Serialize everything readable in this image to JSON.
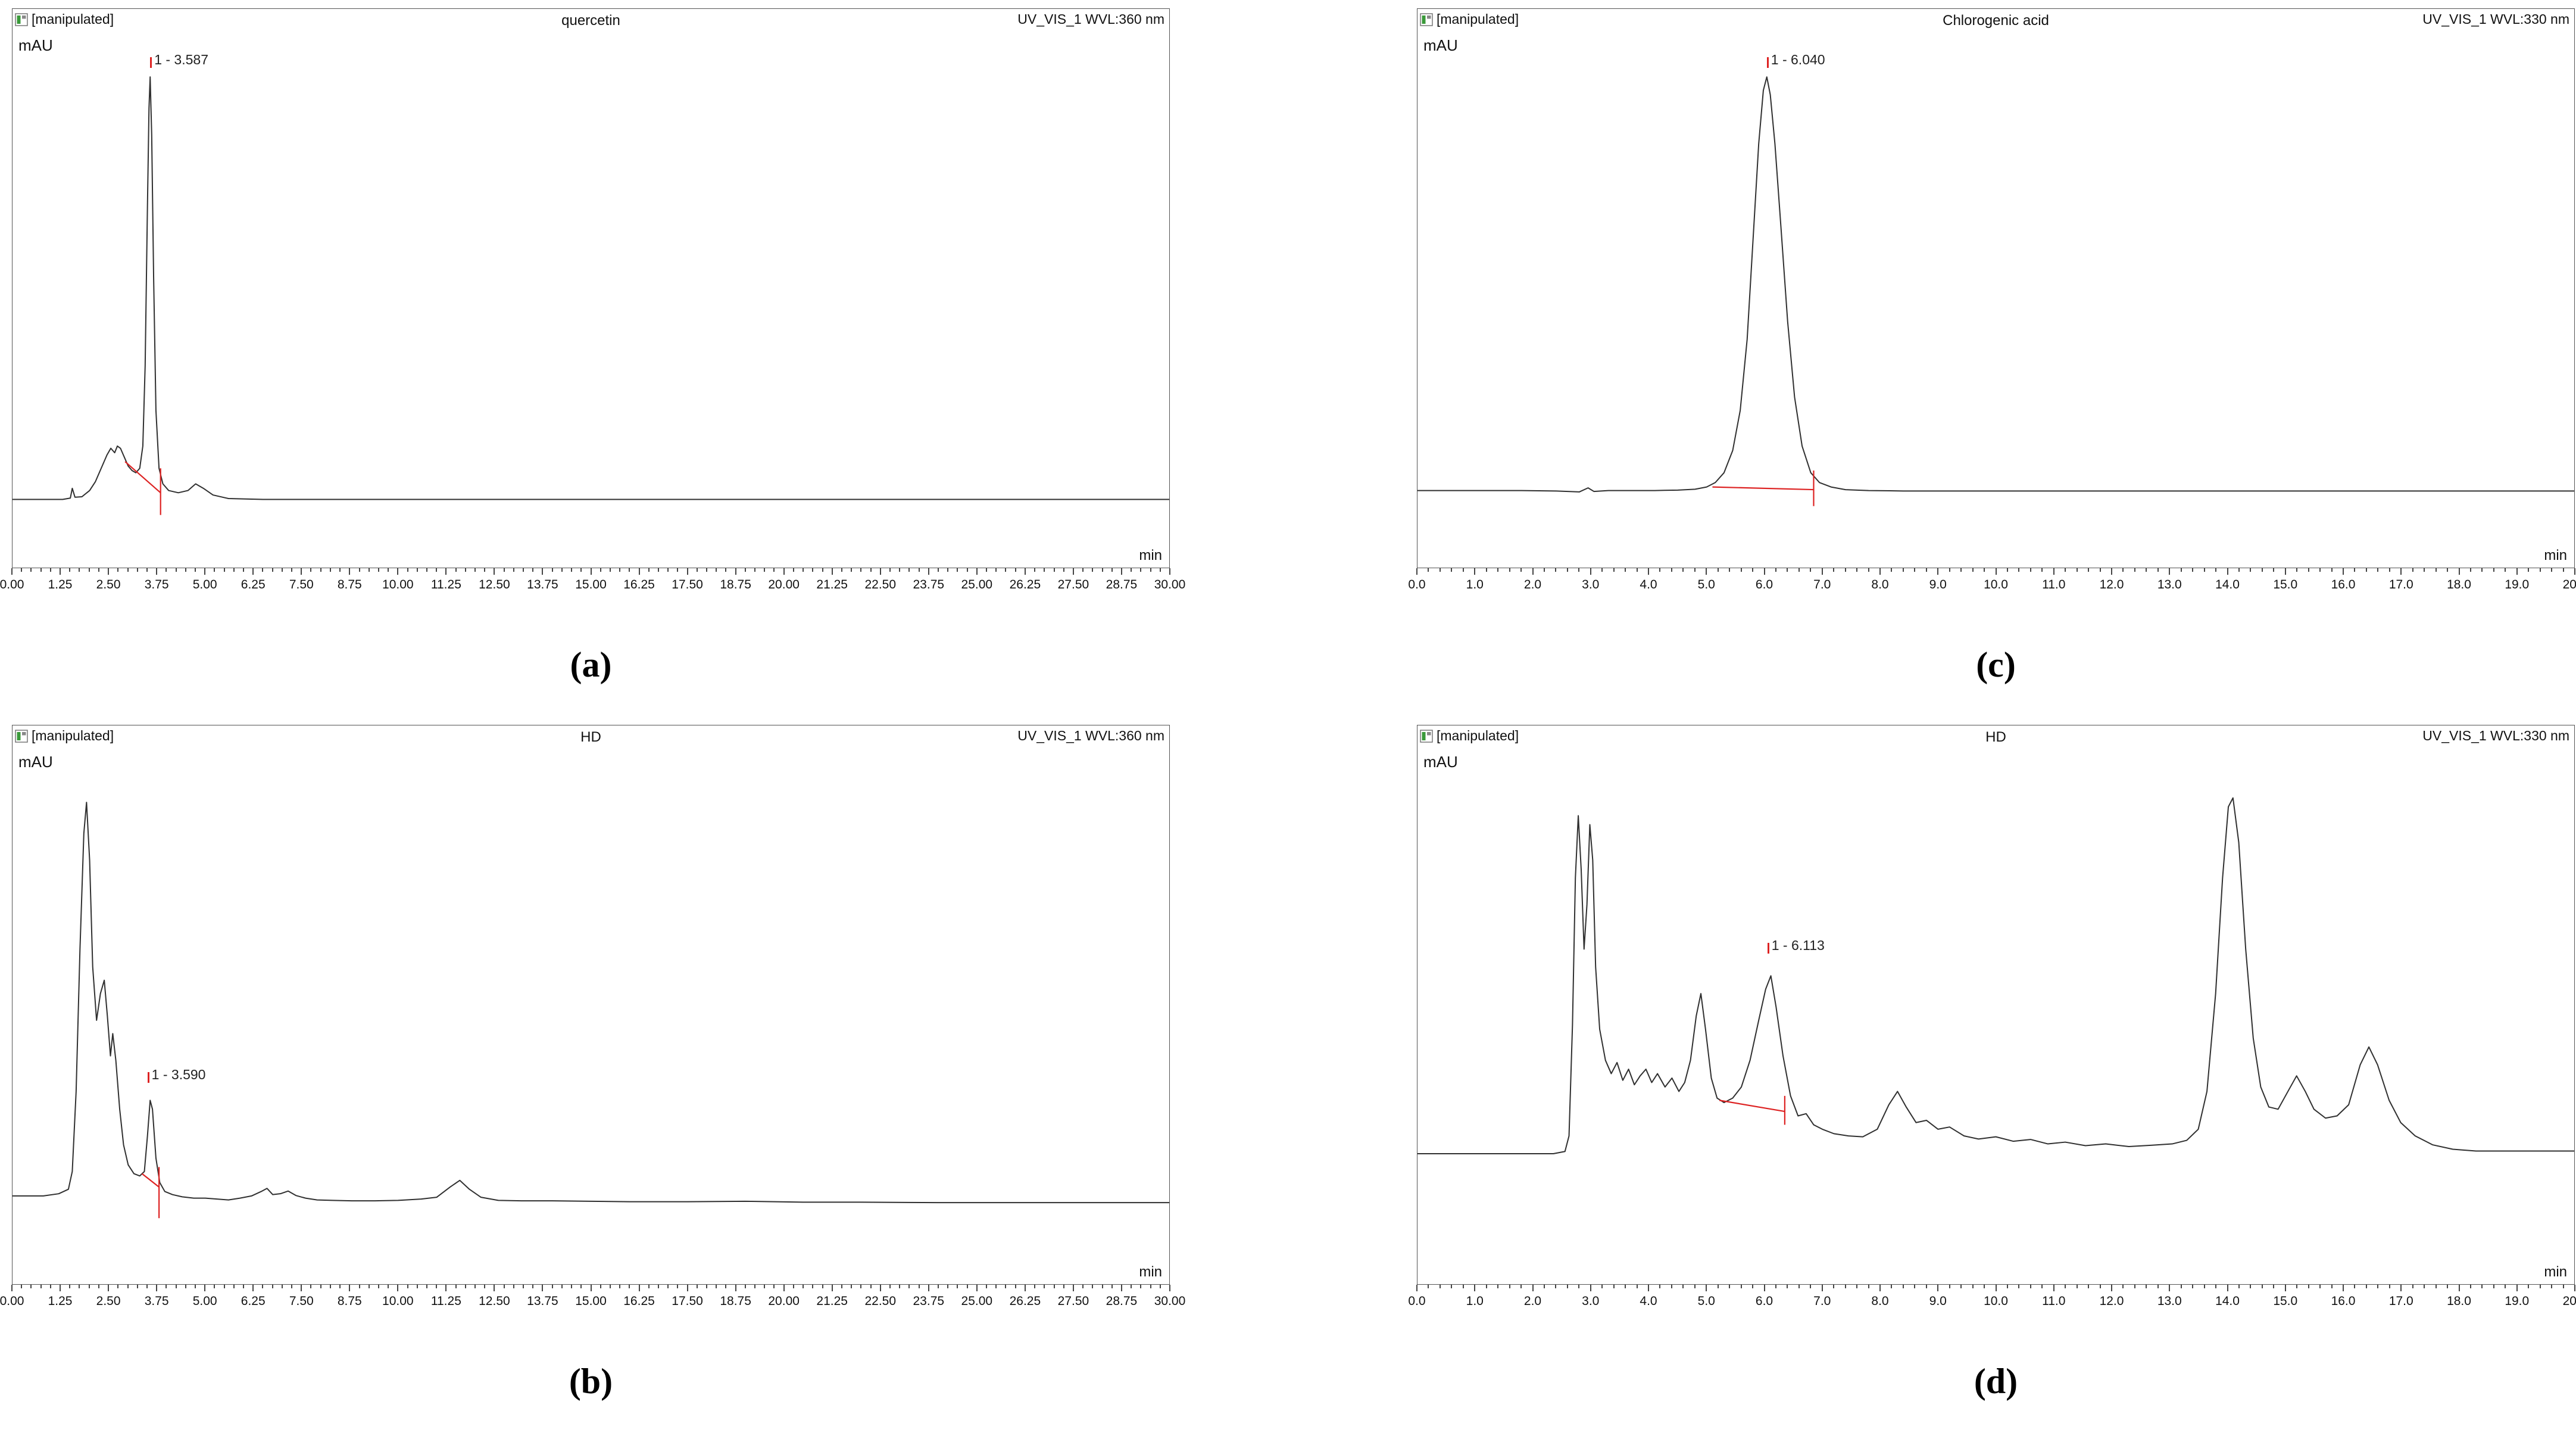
{
  "page": {
    "background": "#ffffff"
  },
  "colors": {
    "trace": "#303030",
    "marker": "#dd2222",
    "chip_green": "#3a9a3a"
  },
  "chart_data": [
    {
      "id": "a",
      "type": "line",
      "title": "quercetin",
      "source_label": "[manipulated]",
      "detector_label": "UV_VIS_1 WVL:360 nm",
      "ylabel": "mAU",
      "xlabel": "min",
      "caption": "(a)",
      "xlim": [
        0,
        30
      ],
      "x_tick_step": 1.25,
      "x_tick_decimals": 2,
      "x_minor_per_major": 4,
      "grid": false,
      "peaks": [
        {
          "label": "1 - 3.587",
          "x": 3.57,
          "y": 99,
          "retention_min": 3.587
        }
      ],
      "baseline_markers": [
        [
          [
            2.92,
            10.5
          ],
          [
            3.84,
            3.5
          ]
        ],
        [
          [
            3.84,
            9
          ],
          [
            3.84,
            -1.5
          ]
        ]
      ],
      "trace": [
        [
          0,
          2
        ],
        [
          0.8,
          2
        ],
        [
          1.3,
          2
        ],
        [
          1.5,
          2.3
        ],
        [
          1.55,
          4.5
        ],
        [
          1.62,
          2.5
        ],
        [
          1.8,
          2.6
        ],
        [
          2.0,
          4
        ],
        [
          2.15,
          6
        ],
        [
          2.3,
          9
        ],
        [
          2.45,
          12
        ],
        [
          2.55,
          13.5
        ],
        [
          2.65,
          12.5
        ],
        [
          2.72,
          14
        ],
        [
          2.8,
          13.5
        ],
        [
          2.9,
          11.5
        ],
        [
          3.0,
          9.5
        ],
        [
          3.1,
          8.5
        ],
        [
          3.2,
          8
        ],
        [
          3.3,
          9
        ],
        [
          3.38,
          14
        ],
        [
          3.44,
          32
        ],
        [
          3.5,
          68
        ],
        [
          3.54,
          90
        ],
        [
          3.57,
          97
        ],
        [
          3.61,
          84
        ],
        [
          3.66,
          52
        ],
        [
          3.72,
          22
        ],
        [
          3.8,
          9
        ],
        [
          3.9,
          5.5
        ],
        [
          4.05,
          4
        ],
        [
          4.3,
          3.5
        ],
        [
          4.55,
          4
        ],
        [
          4.75,
          5.5
        ],
        [
          4.95,
          4.5
        ],
        [
          5.2,
          3
        ],
        [
          5.6,
          2.2
        ],
        [
          6.5,
          2
        ],
        [
          8,
          2
        ],
        [
          10,
          2
        ],
        [
          14,
          2
        ],
        [
          18,
          2
        ],
        [
          22,
          2
        ],
        [
          26,
          2
        ],
        [
          30,
          2
        ]
      ]
    },
    {
      "id": "b",
      "type": "line",
      "title": "HD",
      "source_label": "[manipulated]",
      "detector_label": "UV_VIS_1 WVL:360 nm",
      "ylabel": "mAU",
      "xlabel": "min",
      "caption": "(b)",
      "xlim": [
        0,
        30
      ],
      "x_tick_step": 1.25,
      "x_tick_decimals": 2,
      "x_minor_per_major": 4,
      "grid": false,
      "peaks": [
        {
          "label": "1 - 3.590",
          "x": 3.5,
          "y": 32,
          "retention_min": 3.59
        }
      ],
      "baseline_markers": [
        [
          [
            3.36,
            11.5
          ],
          [
            3.8,
            8.5
          ]
        ],
        [
          [
            3.8,
            13
          ],
          [
            3.8,
            1.5
          ]
        ]
      ],
      "trace": [
        [
          0,
          6.5
        ],
        [
          0.8,
          6.5
        ],
        [
          1.2,
          7
        ],
        [
          1.45,
          8
        ],
        [
          1.55,
          12
        ],
        [
          1.65,
          30
        ],
        [
          1.75,
          62
        ],
        [
          1.85,
          88
        ],
        [
          1.92,
          95
        ],
        [
          2.0,
          82
        ],
        [
          2.08,
          58
        ],
        [
          2.18,
          46
        ],
        [
          2.28,
          52
        ],
        [
          2.38,
          55
        ],
        [
          2.46,
          47
        ],
        [
          2.54,
          38
        ],
        [
          2.6,
          43
        ],
        [
          2.68,
          37
        ],
        [
          2.78,
          26
        ],
        [
          2.88,
          18
        ],
        [
          3.0,
          13.5
        ],
        [
          3.15,
          11.5
        ],
        [
          3.3,
          11
        ],
        [
          3.42,
          12
        ],
        [
          3.5,
          20
        ],
        [
          3.57,
          28
        ],
        [
          3.63,
          26
        ],
        [
          3.72,
          15
        ],
        [
          3.82,
          9.5
        ],
        [
          3.95,
          7.5
        ],
        [
          4.15,
          6.8
        ],
        [
          4.4,
          6.3
        ],
        [
          4.7,
          6
        ],
        [
          5.0,
          6
        ],
        [
          5.3,
          5.8
        ],
        [
          5.6,
          5.6
        ],
        [
          5.9,
          6
        ],
        [
          6.2,
          6.5
        ],
        [
          6.45,
          7.5
        ],
        [
          6.6,
          8.2
        ],
        [
          6.75,
          6.8
        ],
        [
          6.95,
          7
        ],
        [
          7.15,
          7.6
        ],
        [
          7.35,
          6.6
        ],
        [
          7.6,
          6
        ],
        [
          7.9,
          5.6
        ],
        [
          8.3,
          5.5
        ],
        [
          8.8,
          5.4
        ],
        [
          9.4,
          5.4
        ],
        [
          10,
          5.5
        ],
        [
          10.6,
          5.8
        ],
        [
          11.0,
          6.2
        ],
        [
          11.35,
          8.5
        ],
        [
          11.6,
          10
        ],
        [
          11.85,
          8
        ],
        [
          12.15,
          6.2
        ],
        [
          12.6,
          5.5
        ],
        [
          13.2,
          5.4
        ],
        [
          14,
          5.4
        ],
        [
          15,
          5.3
        ],
        [
          16,
          5.2
        ],
        [
          17.5,
          5.2
        ],
        [
          19,
          5.3
        ],
        [
          20.5,
          5.1
        ],
        [
          22,
          5.1
        ],
        [
          24,
          5
        ],
        [
          26,
          5
        ],
        [
          28,
          5
        ],
        [
          30,
          5
        ]
      ]
    },
    {
      "id": "c",
      "type": "line",
      "title": "Chlorogenic acid",
      "source_label": "[manipulated]",
      "detector_label": "UV_VIS_1 WVL:330 nm",
      "ylabel": "mAU",
      "xlabel": "min",
      "caption": "(c)",
      "xlim": [
        0,
        20
      ],
      "x_tick_step": 1.0,
      "x_tick_decimals": 1,
      "x_minor_per_major": 4,
      "grid": false,
      "peaks": [
        {
          "label": "1 - 6.040",
          "x": 6.04,
          "y": 99,
          "retention_min": 6.04
        }
      ],
      "baseline_markers": [
        [
          [
            5.1,
            4.8
          ],
          [
            6.85,
            4.2
          ]
        ],
        [
          [
            6.85,
            8.5
          ],
          [
            6.85,
            0.5
          ]
        ]
      ],
      "trace": [
        [
          0,
          4
        ],
        [
          0.6,
          4
        ],
        [
          1.2,
          4
        ],
        [
          1.8,
          4
        ],
        [
          2.4,
          3.9
        ],
        [
          2.8,
          3.7
        ],
        [
          2.95,
          4.6
        ],
        [
          3.05,
          3.8
        ],
        [
          3.3,
          4
        ],
        [
          3.7,
          4
        ],
        [
          4.1,
          4
        ],
        [
          4.5,
          4.1
        ],
        [
          4.8,
          4.3
        ],
        [
          5.0,
          4.8
        ],
        [
          5.15,
          5.8
        ],
        [
          5.3,
          8
        ],
        [
          5.45,
          13
        ],
        [
          5.58,
          22
        ],
        [
          5.7,
          38
        ],
        [
          5.8,
          60
        ],
        [
          5.9,
          82
        ],
        [
          5.98,
          94
        ],
        [
          6.04,
          97
        ],
        [
          6.1,
          93
        ],
        [
          6.18,
          82
        ],
        [
          6.28,
          64
        ],
        [
          6.4,
          42
        ],
        [
          6.52,
          25
        ],
        [
          6.65,
          14
        ],
        [
          6.8,
          8
        ],
        [
          6.95,
          5.8
        ],
        [
          7.15,
          4.8
        ],
        [
          7.4,
          4.2
        ],
        [
          7.8,
          4
        ],
        [
          8.4,
          3.9
        ],
        [
          9,
          3.9
        ],
        [
          10,
          3.9
        ],
        [
          11,
          3.9
        ],
        [
          12,
          3.9
        ],
        [
          13,
          3.9
        ],
        [
          14,
          3.9
        ],
        [
          15,
          3.9
        ],
        [
          16,
          3.9
        ],
        [
          17,
          3.9
        ],
        [
          18,
          3.9
        ],
        [
          19,
          3.9
        ],
        [
          20,
          3.9
        ]
      ]
    },
    {
      "id": "d",
      "type": "line",
      "title": "HD",
      "source_label": "[manipulated]",
      "detector_label": "UV_VIS_1 WVL:330 nm",
      "ylabel": "mAU",
      "xlabel": "min",
      "caption": "(d)",
      "xlim": [
        0,
        20
      ],
      "x_tick_step": 1.0,
      "x_tick_decimals": 1,
      "x_minor_per_major": 4,
      "grid": false,
      "peaks": [
        {
          "label": "1 - 6.113",
          "x": 6.05,
          "y": 61,
          "retention_min": 6.113
        }
      ],
      "baseline_markers": [
        [
          [
            5.22,
            28
          ],
          [
            6.35,
            25.5
          ]
        ],
        [
          [
            6.35,
            29
          ],
          [
            6.35,
            22.5
          ]
        ]
      ],
      "trace": [
        [
          0,
          16
        ],
        [
          0.5,
          16
        ],
        [
          1.0,
          16
        ],
        [
          1.5,
          16
        ],
        [
          2.0,
          16
        ],
        [
          2.35,
          16
        ],
        [
          2.55,
          16.5
        ],
        [
          2.62,
          20
        ],
        [
          2.68,
          45
        ],
        [
          2.73,
          78
        ],
        [
          2.78,
          92
        ],
        [
          2.83,
          80
        ],
        [
          2.88,
          62
        ],
        [
          2.93,
          72
        ],
        [
          2.98,
          90
        ],
        [
          3.03,
          82
        ],
        [
          3.08,
          58
        ],
        [
          3.15,
          44
        ],
        [
          3.25,
          37
        ],
        [
          3.35,
          34
        ],
        [
          3.45,
          36.5
        ],
        [
          3.55,
          32.5
        ],
        [
          3.65,
          35
        ],
        [
          3.75,
          31.5
        ],
        [
          3.85,
          33.5
        ],
        [
          3.95,
          35
        ],
        [
          4.05,
          32
        ],
        [
          4.15,
          34
        ],
        [
          4.28,
          31
        ],
        [
          4.4,
          33
        ],
        [
          4.52,
          30
        ],
        [
          4.62,
          32
        ],
        [
          4.72,
          37
        ],
        [
          4.82,
          47
        ],
        [
          4.9,
          52
        ],
        [
          4.98,
          44
        ],
        [
          5.08,
          33
        ],
        [
          5.18,
          28.5
        ],
        [
          5.3,
          27.5
        ],
        [
          5.45,
          28.5
        ],
        [
          5.6,
          31
        ],
        [
          5.75,
          37
        ],
        [
          5.9,
          46
        ],
        [
          6.02,
          53
        ],
        [
          6.11,
          56
        ],
        [
          6.2,
          49
        ],
        [
          6.32,
          38
        ],
        [
          6.45,
          29
        ],
        [
          6.58,
          24.5
        ],
        [
          6.72,
          25
        ],
        [
          6.85,
          22.5
        ],
        [
          7.0,
          21.5
        ],
        [
          7.2,
          20.5
        ],
        [
          7.45,
          20
        ],
        [
          7.7,
          19.8
        ],
        [
          7.95,
          21.5
        ],
        [
          8.15,
          27
        ],
        [
          8.3,
          30
        ],
        [
          8.45,
          26.5
        ],
        [
          8.62,
          23
        ],
        [
          8.8,
          23.5
        ],
        [
          9.0,
          21.5
        ],
        [
          9.2,
          22
        ],
        [
          9.45,
          20
        ],
        [
          9.7,
          19.3
        ],
        [
          10.0,
          19.8
        ],
        [
          10.3,
          18.8
        ],
        [
          10.6,
          19.2
        ],
        [
          10.9,
          18.2
        ],
        [
          11.2,
          18.6
        ],
        [
          11.55,
          17.8
        ],
        [
          11.9,
          18.2
        ],
        [
          12.3,
          17.6
        ],
        [
          12.7,
          17.9
        ],
        [
          13.05,
          18.2
        ],
        [
          13.3,
          19
        ],
        [
          13.5,
          21.5
        ],
        [
          13.65,
          30
        ],
        [
          13.8,
          52
        ],
        [
          13.92,
          78
        ],
        [
          14.02,
          94
        ],
        [
          14.1,
          96
        ],
        [
          14.2,
          86
        ],
        [
          14.32,
          62
        ],
        [
          14.45,
          42
        ],
        [
          14.58,
          31
        ],
        [
          14.72,
          26.5
        ],
        [
          14.88,
          26
        ],
        [
          15.05,
          30
        ],
        [
          15.2,
          33.5
        ],
        [
          15.35,
          30
        ],
        [
          15.5,
          26
        ],
        [
          15.7,
          24
        ],
        [
          15.9,
          24.5
        ],
        [
          16.1,
          27
        ],
        [
          16.3,
          36
        ],
        [
          16.45,
          40
        ],
        [
          16.6,
          36
        ],
        [
          16.8,
          28
        ],
        [
          17.0,
          23
        ],
        [
          17.25,
          20
        ],
        [
          17.55,
          18
        ],
        [
          17.9,
          17
        ],
        [
          18.3,
          16.6
        ],
        [
          18.7,
          16.6
        ],
        [
          19.1,
          16.6
        ],
        [
          19.5,
          16.6
        ],
        [
          20,
          16.6
        ]
      ]
    }
  ]
}
